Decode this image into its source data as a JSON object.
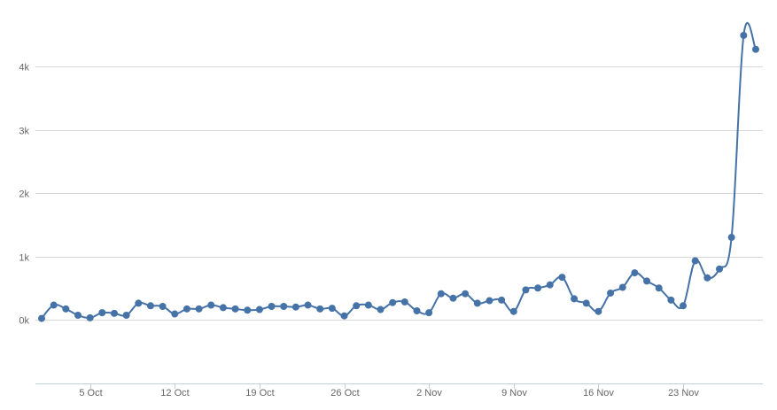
{
  "chart_data": {
    "type": "line",
    "title": "",
    "xlabel": "",
    "ylabel": "",
    "ylim": [
      -1000,
      4800
    ],
    "yticks": [
      "0k",
      "1k",
      "2k",
      "3k",
      "4k"
    ],
    "ytick_values": [
      0,
      1000,
      2000,
      3000,
      4000
    ],
    "xticks": [
      "5 Oct",
      "12 Oct",
      "19 Oct",
      "26 Oct",
      "2 Nov",
      "9 Nov",
      "16 Nov",
      "23 Nov"
    ],
    "xtick_day_index": [
      4,
      11,
      18,
      25,
      32,
      39,
      46,
      53
    ],
    "grid": "horizontal",
    "legend": "none",
    "colors": {
      "line": "#4572a7",
      "grid": "#d8d8d8",
      "axis": "#c0d0e0"
    },
    "series": [
      {
        "values": [
          20,
          230,
          170,
          70,
          30,
          110,
          100,
          70,
          260,
          220,
          210,
          90,
          170,
          170,
          230,
          190,
          170,
          150,
          160,
          210,
          210,
          200,
          230,
          170,
          180,
          60,
          220,
          230,
          160,
          270,
          280,
          140,
          110,
          410,
          340,
          410,
          260,
          300,
          310,
          130,
          470,
          500,
          550,
          670,
          330,
          260,
          130,
          420,
          510,
          740,
          610,
          500,
          310,
          220,
          930,
          660,
          800,
          1300,
          4490,
          4270
        ]
      }
    ]
  }
}
